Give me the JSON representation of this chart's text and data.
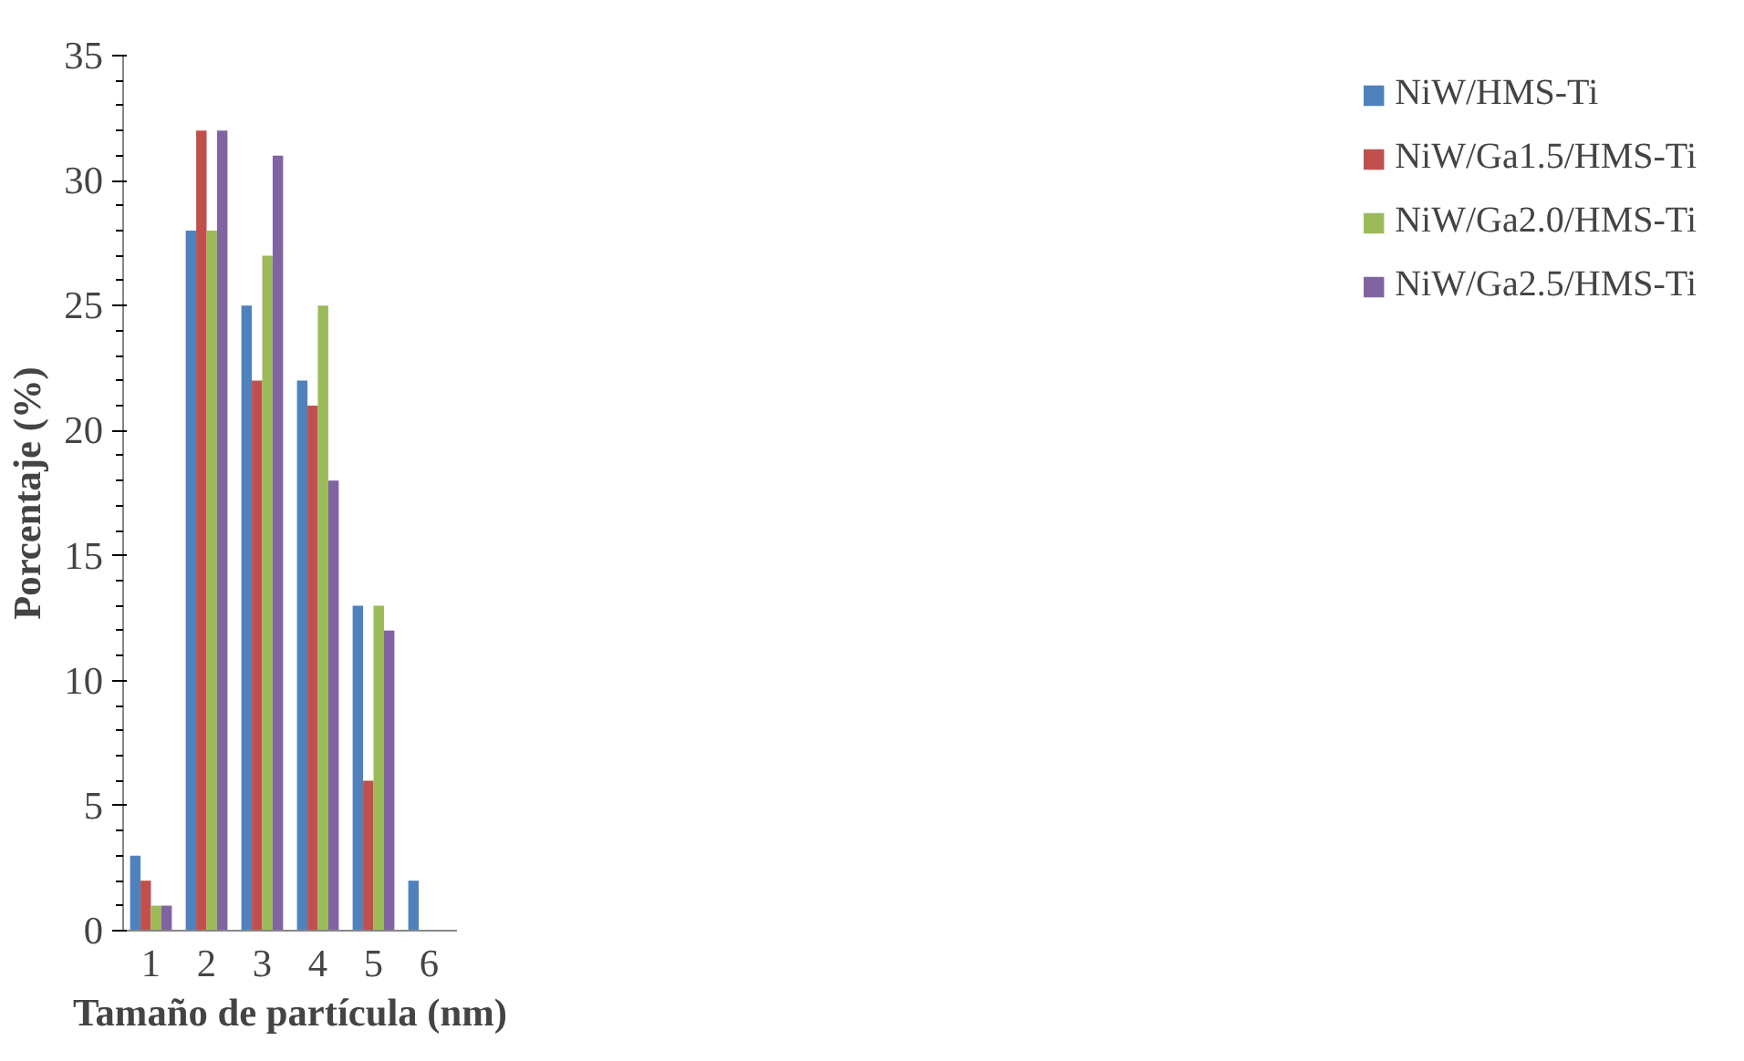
{
  "chart_data": {
    "type": "bar",
    "xlabel": "Tamaño de partícula (nm)",
    "ylabel": "Porcentaje (%)",
    "categories": [
      "1",
      "2",
      "3",
      "4",
      "5",
      "6"
    ],
    "ylim": [
      0,
      35
    ],
    "yticks": [
      0,
      5,
      10,
      15,
      20,
      25,
      30,
      35
    ],
    "grid": false,
    "legend": "right",
    "series": [
      {
        "name": "NiW/HMS-Ti",
        "color": "#4f81bd",
        "values": [
          3,
          28,
          25,
          22,
          13,
          2
        ]
      },
      {
        "name": "NiW/Ga1.5/HMS-Ti",
        "color": "#c0504d",
        "values": [
          2,
          32,
          22,
          21,
          6,
          null
        ]
      },
      {
        "name": "NiW/Ga2.0/HMS-Ti",
        "color": "#9bbb59",
        "values": [
          1,
          28,
          27,
          25,
          13,
          null
        ]
      },
      {
        "name": "NiW/Ga2.5/HMS-Ti",
        "color": "#8064a2",
        "values": [
          1,
          32,
          31,
          18,
          12,
          null
        ]
      }
    ]
  }
}
